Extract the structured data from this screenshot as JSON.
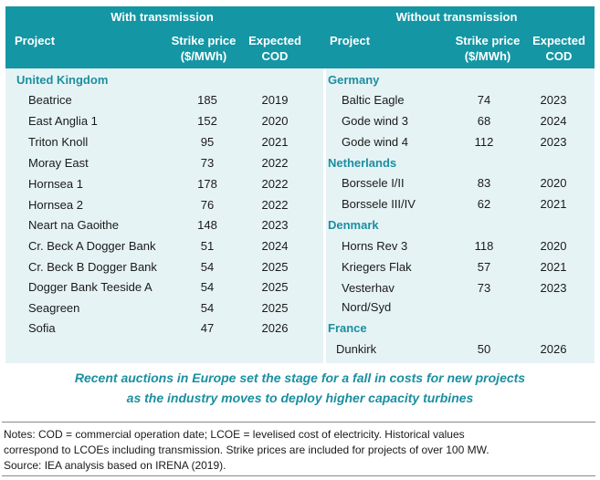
{
  "left": {
    "title": "With transmission",
    "col_project": "Project",
    "col_price_1": "Strike price",
    "col_price_2": "($/MWh)",
    "col_cod_1": "Expected",
    "col_cod_2": "COD",
    "groups": [
      {
        "country": "United Kingdom",
        "rows": [
          {
            "name": "Beatrice",
            "price": "185",
            "cod": "2019"
          },
          {
            "name": "East Anglia 1",
            "price": "152",
            "cod": "2020"
          },
          {
            "name": "Triton Knoll",
            "price": "95",
            "cod": "2021"
          },
          {
            "name": "Moray East",
            "price": "73",
            "cod": "2022"
          },
          {
            "name": "Hornsea 1",
            "price": "178",
            "cod": "2022"
          },
          {
            "name": "Hornsea 2",
            "price": "76",
            "cod": "2022"
          },
          {
            "name": "Neart na Gaoithe",
            "price": "148",
            "cod": "2023"
          },
          {
            "name": "Cr. Beck A Dogger Bank",
            "price": "51",
            "cod": "2024"
          },
          {
            "name": "Cr. Beck B Dogger Bank",
            "price": "54",
            "cod": "2025"
          },
          {
            "name": "Dogger Bank Teeside A",
            "price": "54",
            "cod": "2025"
          },
          {
            "name": "Seagreen",
            "price": "54",
            "cod": "2025"
          },
          {
            "name": "Sofia",
            "price": "47",
            "cod": "2026"
          }
        ]
      }
    ]
  },
  "right": {
    "title": "Without transmission",
    "col_project": "Project",
    "col_price_1": "Strike price",
    "col_price_2": "($/MWh)",
    "col_cod_1": "Expected",
    "col_cod_2": "COD",
    "groups": [
      {
        "country": "Germany",
        "rows": [
          {
            "name": "Baltic Eagle",
            "price": "74",
            "cod": "2023"
          },
          {
            "name": "Gode wind 3",
            "price": "68",
            "cod": "2024"
          },
          {
            "name": "Gode wind 4",
            "price": "112",
            "cod": "2023"
          }
        ]
      },
      {
        "country": "Netherlands",
        "rows": [
          {
            "name": "Borssele I/II",
            "price": "83",
            "cod": "2020"
          },
          {
            "name": "Borssele III/IV",
            "price": "62",
            "cod": "2021"
          }
        ]
      },
      {
        "country": "Denmark",
        "rows": [
          {
            "name": "Horns Rev 3",
            "price": "118",
            "cod": "2020"
          },
          {
            "name": "Kriegers Flak",
            "price": "57",
            "cod": "2021"
          },
          {
            "name": "Vesterhav",
            "name2": "Nord/Syd",
            "price": "73",
            "cod": "2023"
          }
        ]
      },
      {
        "country": "France",
        "rows": [
          {
            "name": "Dunkirk",
            "price": "50",
            "cod": "2026"
          }
        ]
      }
    ]
  },
  "caption_line1": "Recent auctions in Europe set the stage for a fall in costs for new projects",
  "caption_line2": "as the industry moves to deploy higher capacity turbines",
  "notes_line1": "Notes: COD = commercial operation date; LCOE = levelised cost of electricity. Historical values",
  "notes_line2": "correspond to LCOEs including transmission. Strike prices are included for projects of over 100 MW.",
  "notes_line3": "Source: IEA analysis based on IRENA (2019)."
}
